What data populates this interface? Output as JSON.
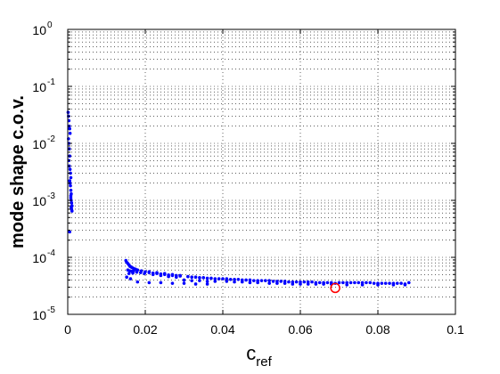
{
  "chart_data": {
    "type": "scatter",
    "title": "",
    "xlabel": "c",
    "xlabel_subscript": "ref",
    "ylabel": "mode shape c.o.v.",
    "xlim": [
      0,
      0.1
    ],
    "ylim": [
      1e-05,
      1
    ],
    "yscale": "log",
    "grid": true,
    "x_ticks": [
      {
        "value": 0,
        "label": "0"
      },
      {
        "value": 0.02,
        "label": "0.02"
      },
      {
        "value": 0.04,
        "label": "0.04"
      },
      {
        "value": 0.06,
        "label": "0.06"
      },
      {
        "value": 0.08,
        "label": "0.08"
      },
      {
        "value": 0.1,
        "label": "0.1"
      }
    ],
    "y_ticks": [
      {
        "value": 1e-05,
        "base": "10",
        "exponent": "-5"
      },
      {
        "value": 0.0001,
        "base": "10",
        "exponent": "-4"
      },
      {
        "value": 0.001,
        "base": "10",
        "exponent": "-3"
      },
      {
        "value": 0.01,
        "base": "10",
        "exponent": "-2"
      },
      {
        "value": 0.1,
        "base": "10",
        "exponent": "-1"
      },
      {
        "value": 1,
        "base": "10",
        "exponent": "0"
      }
    ],
    "colors": {
      "points": "#0000ff",
      "highlight": "#ff0000",
      "grid": "#000000"
    },
    "series": [
      {
        "marker": "dot",
        "x": [
          0.0001,
          0.0002,
          0.0003,
          0.0004,
          0.0005,
          0.0006,
          0.0002,
          0.0003,
          0.0004,
          0.0005,
          0.0003,
          0.0004,
          0.0006,
          0.0007,
          0.0008,
          0.0005,
          0.0006,
          0.0007,
          0.0008,
          0.0009,
          0.0008,
          0.0009,
          0.001,
          0.0011,
          0.0009,
          0.001,
          0.0011,
          0.0008,
          0.0005,
          0.015,
          0.0152,
          0.0155,
          0.0158,
          0.016,
          0.0163,
          0.0166,
          0.017,
          0.0155,
          0.016,
          0.0165,
          0.017,
          0.0175,
          0.018,
          0.019,
          0.02,
          0.0158,
          0.0168,
          0.0178,
          0.0188,
          0.0198,
          0.0152,
          0.0162,
          0.021,
          0.022,
          0.023,
          0.024,
          0.025,
          0.026,
          0.027,
          0.028,
          0.029,
          0.021,
          0.023,
          0.025,
          0.027,
          0.029,
          0.022,
          0.024,
          0.026,
          0.028,
          0.031,
          0.032,
          0.033,
          0.034,
          0.035,
          0.036,
          0.037,
          0.038,
          0.039,
          0.03,
          0.032,
          0.034,
          0.036,
          0.038,
          0.018,
          0.021,
          0.024,
          0.027,
          0.03,
          0.033,
          0.036,
          0.04,
          0.041,
          0.042,
          0.043,
          0.044,
          0.045,
          0.046,
          0.047,
          0.048,
          0.049,
          0.05,
          0.041,
          0.043,
          0.045,
          0.047,
          0.049,
          0.051,
          0.052,
          0.053,
          0.054,
          0.055,
          0.056,
          0.057,
          0.058,
          0.059,
          0.06,
          0.052,
          0.054,
          0.056,
          0.058,
          0.06,
          0.061,
          0.062,
          0.063,
          0.064,
          0.065,
          0.066,
          0.067,
          0.068,
          0.062,
          0.064,
          0.066,
          0.068,
          0.069,
          0.07,
          0.071,
          0.072,
          0.073,
          0.074,
          0.075,
          0.076,
          0.077,
          0.078,
          0.079,
          0.08,
          0.081,
          0.082,
          0.083,
          0.084,
          0.085,
          0.086,
          0.087,
          0.088,
          0.072,
          0.076,
          0.08,
          0.084,
          0.087
        ],
        "y": [
          0.035,
          0.03,
          0.025,
          0.02,
          0.018,
          0.015,
          0.012,
          0.01,
          0.008,
          0.006,
          0.005,
          0.004,
          0.0035,
          0.003,
          0.0025,
          0.0022,
          0.002,
          0.0018,
          0.0015,
          0.0013,
          0.0012,
          0.001,
          0.0009,
          0.0008,
          0.00075,
          0.0007,
          0.00065,
          0.0011,
          0.00028,
          8.8e-05,
          8.2e-05,
          7.8e-05,
          7.4e-05,
          7e-05,
          6.8e-05,
          6.6e-05,
          6.4e-05,
          6e-05,
          5.8e-05,
          5.7e-05,
          5.8e-05,
          6.2e-05,
          6e-05,
          5.8e-05,
          5.6e-05,
          5.2e-05,
          5.3e-05,
          5.5e-05,
          5.4e-05,
          5.2e-05,
          4.5e-05,
          4.2e-05,
          5.4e-05,
          5.3e-05,
          5.2e-05,
          5.1e-05,
          5e-05,
          4.9e-05,
          4.8e-05,
          4.8e-05,
          4.7e-05,
          5.6e-05,
          5.4e-05,
          5.2e-05,
          5e-05,
          4.8e-05,
          5e-05,
          4.8e-05,
          4.6e-05,
          4.5e-05,
          4.6e-05,
          4.5e-05,
          4.5e-05,
          4.4e-05,
          4.4e-05,
          4.3e-05,
          4.3e-05,
          4.2e-05,
          4.2e-05,
          4e-05,
          3.9e-05,
          3.9e-05,
          3.8e-05,
          3.8e-05,
          3.7e-05,
          3.6e-05,
          3.6e-05,
          3.5e-05,
          3.5e-05,
          3.4e-05,
          3.4e-05,
          4.2e-05,
          4.2e-05,
          4.1e-05,
          4.1e-05,
          4.1e-05,
          4e-05,
          4e-05,
          4e-05,
          3.9e-05,
          3.9e-05,
          3.9e-05,
          3.8e-05,
          3.7e-05,
          3.7e-05,
          3.6e-05,
          3.6e-05,
          3.9e-05,
          3.9e-05,
          3.8e-05,
          3.8e-05,
          3.8e-05,
          3.8e-05,
          3.7e-05,
          3.7e-05,
          3.7e-05,
          3.7e-05,
          3.5e-05,
          3.5e-05,
          3.5e-05,
          3.4e-05,
          3.4e-05,
          3.7e-05,
          3.7e-05,
          3.7e-05,
          3.6e-05,
          3.6e-05,
          3.6e-05,
          3.6e-05,
          3.6e-05,
          3.4e-05,
          3.4e-05,
          3.4e-05,
          3.4e-05,
          3.5e-05,
          3.6e-05,
          3.6e-05,
          3.6e-05,
          3.6e-05,
          3.6e-05,
          3.6e-05,
          3.6e-05,
          3.6e-05,
          3.6e-05,
          3.5e-05,
          3.5e-05,
          3.5e-05,
          3.5e-05,
          3.5e-05,
          3.5e-05,
          3.5e-05,
          3.5e-05,
          3.4e-05,
          3.6e-05,
          3.3e-05,
          3.3e-05,
          3.3e-05,
          3.3e-05,
          3.3e-05
        ]
      }
    ],
    "highlight_point": {
      "x": 0.069,
      "y": 2.9e-05,
      "marker": "circle"
    }
  }
}
